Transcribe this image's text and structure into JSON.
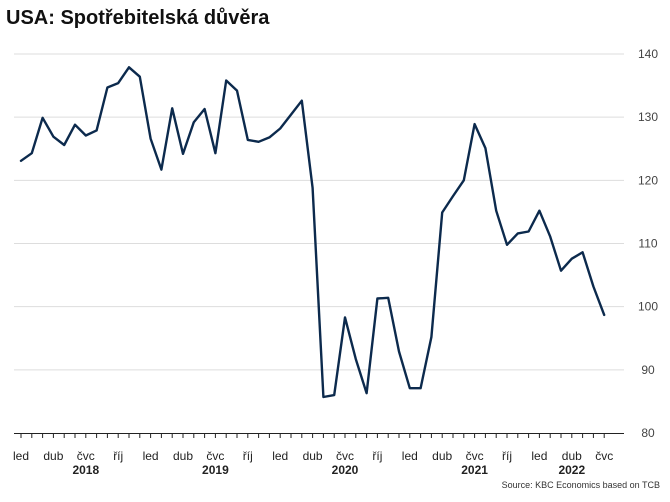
{
  "title": "USA: Spotřebitelská důvěra",
  "source": "Source: KBC Economics based on TCB",
  "colors": {
    "line": "#0c2a4d",
    "grid": "#dddddd",
    "axis": "#222222",
    "background": "#ffffff"
  },
  "chart_data": {
    "type": "line",
    "title": "USA: Spotřebitelská důvěra",
    "xlabel": "",
    "ylabel": "",
    "ylim": [
      80,
      140
    ],
    "yticks": [
      80,
      90,
      100,
      110,
      120,
      130,
      140
    ],
    "grid": true,
    "legend": "none",
    "x": [
      "2018-01",
      "2018-02",
      "2018-03",
      "2018-04",
      "2018-05",
      "2018-06",
      "2018-07",
      "2018-08",
      "2018-09",
      "2018-10",
      "2018-11",
      "2018-12",
      "2019-01",
      "2019-02",
      "2019-03",
      "2019-04",
      "2019-05",
      "2019-06",
      "2019-07",
      "2019-08",
      "2019-09",
      "2019-10",
      "2019-11",
      "2019-12",
      "2020-01",
      "2020-02",
      "2020-03",
      "2020-04",
      "2020-05",
      "2020-06",
      "2020-07",
      "2020-08",
      "2020-09",
      "2020-10",
      "2020-11",
      "2020-12",
      "2021-01",
      "2021-02",
      "2021-03",
      "2021-04",
      "2021-05",
      "2021-06",
      "2021-07",
      "2021-08",
      "2021-09",
      "2021-10",
      "2021-11",
      "2021-12",
      "2022-01",
      "2022-02",
      "2022-03",
      "2022-04",
      "2022-05",
      "2022-06",
      "2022-07"
    ],
    "series": [
      {
        "values": [
          123.1,
          124.3,
          129.9,
          126.9,
          125.6,
          128.8,
          127.1,
          127.9,
          134.7,
          135.4,
          137.9,
          136.4,
          126.6,
          121.7,
          131.4,
          124.2,
          129.2,
          131.3,
          124.3,
          135.8,
          134.2,
          126.4,
          126.1,
          126.8,
          128.2,
          130.4,
          132.6,
          118.8,
          85.7,
          86.0,
          98.3,
          91.7,
          86.3,
          101.3,
          101.4,
          92.9,
          87.1,
          87.1,
          95.2,
          114.9,
          117.5,
          120.0,
          128.9,
          125.1,
          115.2,
          109.8,
          111.6,
          111.9,
          115.2,
          111.1,
          105.7,
          107.6,
          108.6,
          103.2,
          98.7
        ]
      }
    ],
    "x_tick_labels": [
      {
        "month": "2018-01",
        "label": "led"
      },
      {
        "month": "2018-04",
        "label": "dub"
      },
      {
        "month": "2018-07",
        "label": "čvc"
      },
      {
        "month": "2018-10",
        "label": "říj"
      },
      {
        "month": "2019-01",
        "label": "led"
      },
      {
        "month": "2019-04",
        "label": "dub"
      },
      {
        "month": "2019-07",
        "label": "čvc"
      },
      {
        "month": "2019-10",
        "label": "říj"
      },
      {
        "month": "2020-01",
        "label": "led"
      },
      {
        "month": "2020-04",
        "label": "dub"
      },
      {
        "month": "2020-07",
        "label": "čvc"
      },
      {
        "month": "2020-10",
        "label": "říj"
      },
      {
        "month": "2021-01",
        "label": "led"
      },
      {
        "month": "2021-04",
        "label": "dub"
      },
      {
        "month": "2021-07",
        "label": "čvc"
      },
      {
        "month": "2021-10",
        "label": "říj"
      },
      {
        "month": "2022-01",
        "label": "led"
      },
      {
        "month": "2022-04",
        "label": "dub"
      },
      {
        "month": "2022-07",
        "label": "čvc"
      }
    ],
    "x_year_labels": [
      {
        "month": "2018-07",
        "label": "2018"
      },
      {
        "month": "2019-07",
        "label": "2019"
      },
      {
        "month": "2020-07",
        "label": "2020"
      },
      {
        "month": "2021-07",
        "label": "2021"
      },
      {
        "month": "2022-04",
        "label": "2022"
      }
    ]
  }
}
